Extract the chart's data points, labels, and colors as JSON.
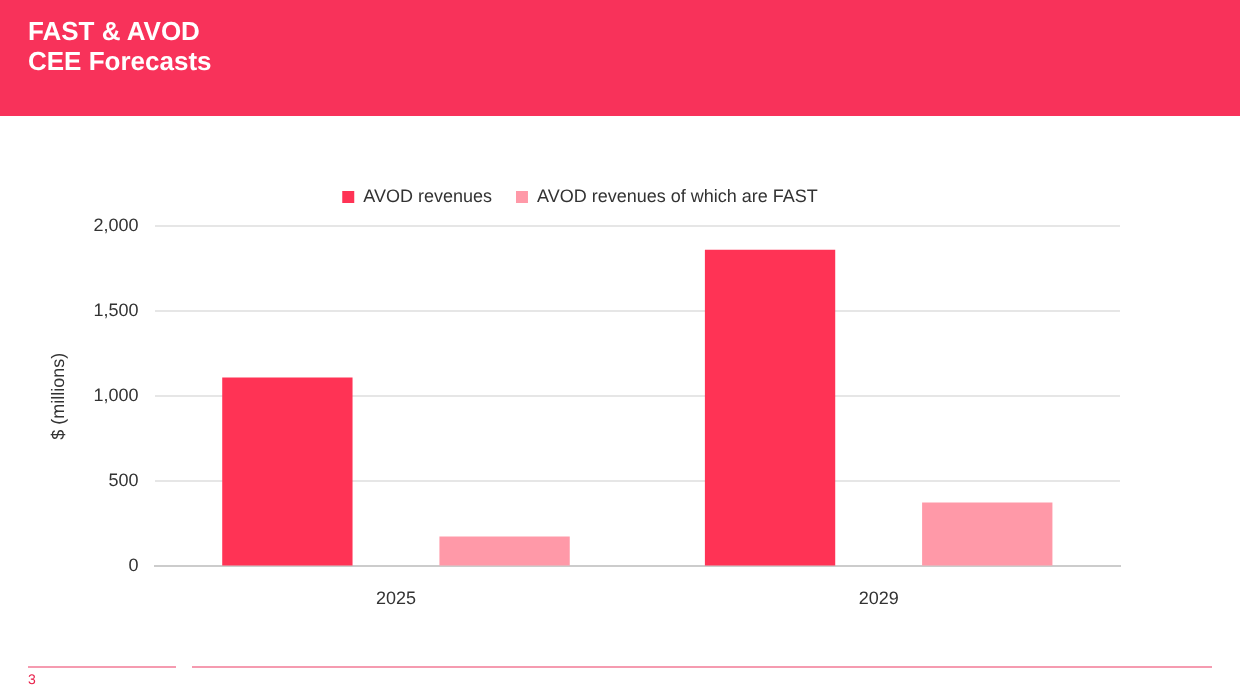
{
  "chart_data": {
    "type": "bar",
    "title": "FAST & AVOD\nCEE Forecasts",
    "ylabel": "$ (millions)",
    "categories": [
      "2025",
      "2029"
    ],
    "series": [
      {
        "name": "AVOD revenues",
        "color": "#ff3355",
        "values": [
          1110,
          1860
        ]
      },
      {
        "name": "AVOD revenues of which are FAST",
        "color": "#ff99a8",
        "values": [
          175,
          375
        ]
      }
    ],
    "ylim": [
      0,
      2000
    ],
    "yticks": [
      {
        "value": 0,
        "label": "0"
      },
      {
        "value": 500,
        "label": "500"
      },
      {
        "value": 1000,
        "label": "1,000"
      },
      {
        "value": 1500,
        "label": "1,500"
      },
      {
        "value": 2000,
        "label": "2,000"
      }
    ],
    "grid": "y",
    "legend": "top",
    "annotations": [
      "3"
    ]
  }
}
